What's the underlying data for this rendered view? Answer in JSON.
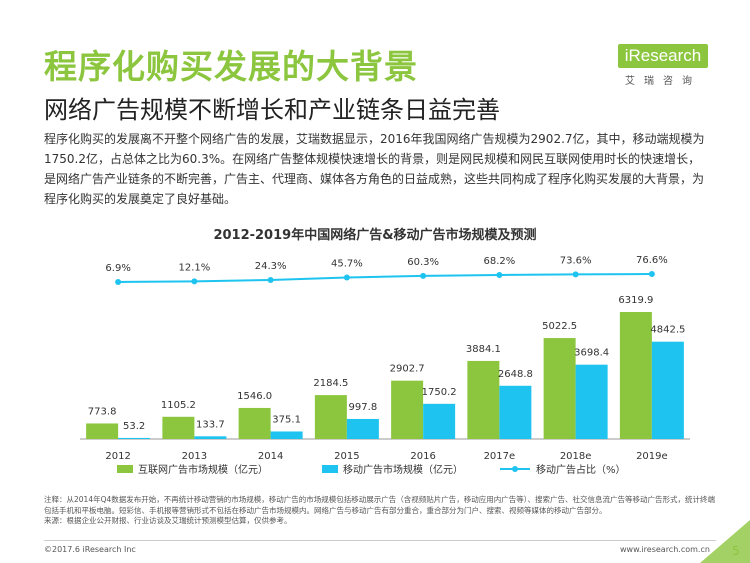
{
  "page": {
    "title": "程序化购买发展的大背景",
    "subtitle": "网络广告规模不断增长和产业链条日益完善",
    "body": "程序化购买的发展离不开整个网络广告的发展，艾瑞数据显示，2016年我国网络广告规模为2902.7亿，其中，移动端规模为1750.2亿，占总体之比为60.3%。在网络广告整体规模快速增长的背景，则是网民规模和网民互联网使用时长的快速增长，是网络广告产业链条的不断完善，广告主、代理商、媒体各方角色的日益成熟，这些共同构成了程序化购买发展的大背景，为程序化购买的发展奠定了良好基础。",
    "note": "注释：从2014年Q4数据发布开始，不再统计移动营销的市场规模，移动广告的市场规模包括移动展示广告（含视频贴片广告，移动应用内广告等）、搜索广告、社交信息流广告等移动广告形式，统计终端包括手机和平板电脑。短彩信、手机报等营销形式不包括在移动广告市场规模内。网络广告与移动广告有部分重合，重合部分为门户、搜索、视频等媒体的移动广告部分。",
    "source": "来源：根据企业公开财报、行业访谈及艾瑞统计预测模型估算，仅供参考。",
    "copyright": "©2017.6 iResearch Inc",
    "website": "www.iresearch.com.cn",
    "page_number": "5"
  },
  "logo": {
    "brand": "iResearch",
    "sub": "艾瑞咨询"
  },
  "colors": {
    "accent": "#8cc63f",
    "online": "#8cc63f",
    "mobile": "#1ec4ef"
  },
  "chart_data": {
    "type": "bar",
    "title": "2012-2019年中国网络广告&移动广告市场规模及预测",
    "categories": [
      "2012",
      "2013",
      "2014",
      "2015",
      "2016",
      "2017e",
      "2018e",
      "2019e"
    ],
    "series": [
      {
        "name": "互联网广告市场规模（亿元）",
        "type": "bar",
        "values": [
          773.8,
          1105.2,
          1546.0,
          2184.5,
          2902.7,
          3884.1,
          5022.5,
          6319.9
        ],
        "labels": [
          "773.8",
          "1105.2",
          "1546.0",
          "2184.5",
          "2902.7",
          "3884.1",
          "5022.5",
          "6319.9"
        ]
      },
      {
        "name": "移动广告市场规模（亿元）",
        "type": "bar",
        "values": [
          53.2,
          133.7,
          375.1,
          997.8,
          1750.2,
          2648.8,
          3698.4,
          4842.5
        ],
        "labels": [
          "53.2",
          "133.7",
          "375.1",
          "997.8",
          "1750.2",
          "2648.8",
          "3698.4",
          "4842.5"
        ]
      },
      {
        "name": "移动广告占比（%）",
        "type": "line",
        "values": [
          6.9,
          12.1,
          24.3,
          45.7,
          60.3,
          68.2,
          73.6,
          76.6
        ],
        "labels": [
          "6.9%",
          "12.1%",
          "24.3%",
          "45.7%",
          "60.3%",
          "68.2%",
          "73.6%",
          "76.6%"
        ]
      }
    ],
    "legend_position": "bottom",
    "grid": false
  }
}
